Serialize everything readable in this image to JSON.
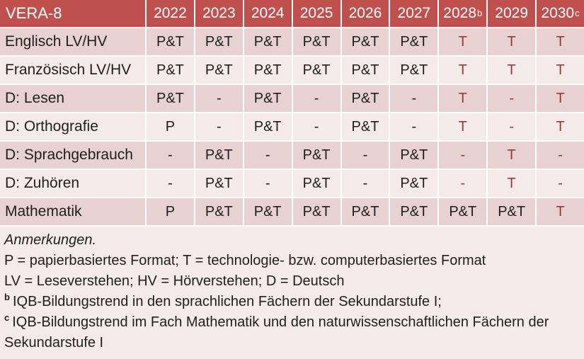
{
  "colors": {
    "header_bg": "#c0504d",
    "row_dark": "#e7d2d1",
    "row_light": "#f3eae9",
    "accent_red": "#963a37",
    "header_text": "#ffffff",
    "body_text": "#1f1f1f",
    "separator": "#ffffff"
  },
  "table": {
    "corner_label": "VERA-8",
    "years": [
      {
        "text": "2022"
      },
      {
        "text": "2023"
      },
      {
        "text": "2024"
      },
      {
        "text": "2025"
      },
      {
        "text": "2026"
      },
      {
        "text": "2027"
      },
      {
        "text": "2028",
        "sup": "b"
      },
      {
        "text": "2029"
      },
      {
        "text": "2030",
        "sup": "c"
      }
    ],
    "rows": [
      {
        "label": "Englisch LV/HV",
        "cells": [
          {
            "text": "P&T"
          },
          {
            "text": "P&T"
          },
          {
            "text": "P&T"
          },
          {
            "text": "P&T"
          },
          {
            "text": "P&T"
          },
          {
            "text": "P&T"
          },
          {
            "text": "T",
            "red": true
          },
          {
            "text": "T",
            "red": true
          },
          {
            "text": "T",
            "red": true
          }
        ]
      },
      {
        "label": "Französisch LV/HV",
        "cells": [
          {
            "text": "P&T"
          },
          {
            "text": "P&T"
          },
          {
            "text": "P&T"
          },
          {
            "text": "P&T"
          },
          {
            "text": "P&T"
          },
          {
            "text": "P&T"
          },
          {
            "text": "T",
            "red": true
          },
          {
            "text": "T",
            "red": true
          },
          {
            "text": "T",
            "red": true
          }
        ]
      },
      {
        "label": "D: Lesen",
        "cells": [
          {
            "text": "P&T"
          },
          {
            "text": "-"
          },
          {
            "text": "P&T"
          },
          {
            "text": "-"
          },
          {
            "text": "P&T"
          },
          {
            "text": "-"
          },
          {
            "text": "T",
            "red": true
          },
          {
            "text": "-",
            "red": true
          },
          {
            "text": "T",
            "red": true
          }
        ]
      },
      {
        "label": "D: Orthografie",
        "cells": [
          {
            "text": "P"
          },
          {
            "text": "-"
          },
          {
            "text": "P&T"
          },
          {
            "text": "-"
          },
          {
            "text": "P&T"
          },
          {
            "text": "-"
          },
          {
            "text": "T",
            "red": true
          },
          {
            "text": "-",
            "red": true
          },
          {
            "text": "T",
            "red": true
          }
        ]
      },
      {
        "label": "D: Sprachgebrauch",
        "cells": [
          {
            "text": "-"
          },
          {
            "text": "P&T"
          },
          {
            "text": "-"
          },
          {
            "text": "P&T"
          },
          {
            "text": "-"
          },
          {
            "text": "P&T"
          },
          {
            "text": "-",
            "red": true
          },
          {
            "text": "T",
            "red": true
          },
          {
            "text": "-",
            "red": true
          }
        ]
      },
      {
        "label": "D: Zuhören",
        "cells": [
          {
            "text": "-"
          },
          {
            "text": "P&T"
          },
          {
            "text": "-"
          },
          {
            "text": "P&T"
          },
          {
            "text": "-"
          },
          {
            "text": "P&T"
          },
          {
            "text": "-",
            "red": true
          },
          {
            "text": "T",
            "red": true
          },
          {
            "text": "-",
            "red": true
          }
        ]
      },
      {
        "label": "Mathematik",
        "cells": [
          {
            "text": "P"
          },
          {
            "text": "P&T"
          },
          {
            "text": "P&T"
          },
          {
            "text": "P&T"
          },
          {
            "text": "P&T"
          },
          {
            "text": "P&T"
          },
          {
            "text": "P&T"
          },
          {
            "text": "P&T"
          },
          {
            "text": "T",
            "red": true
          }
        ]
      }
    ]
  },
  "notes": {
    "lines": [
      {
        "text": "Anmerkungen.",
        "italic": true
      },
      {
        "text": "P = papierbasiertes Format; T = technologie- bzw. computerbasiertes Format"
      },
      {
        "text": "LV = Leseverstehen; HV = Hörverstehen; D = Deutsch"
      },
      {
        "sup": "b",
        "text": "IQB-Bildungstrend in den sprachlichen Fächern der Sekundarstufe I;"
      },
      {
        "sup": "c",
        "text": "IQB-Bildungstrend im Fach Mathematik und den naturwissenschaftlichen Fächern der Sekundarstufe I"
      }
    ]
  }
}
